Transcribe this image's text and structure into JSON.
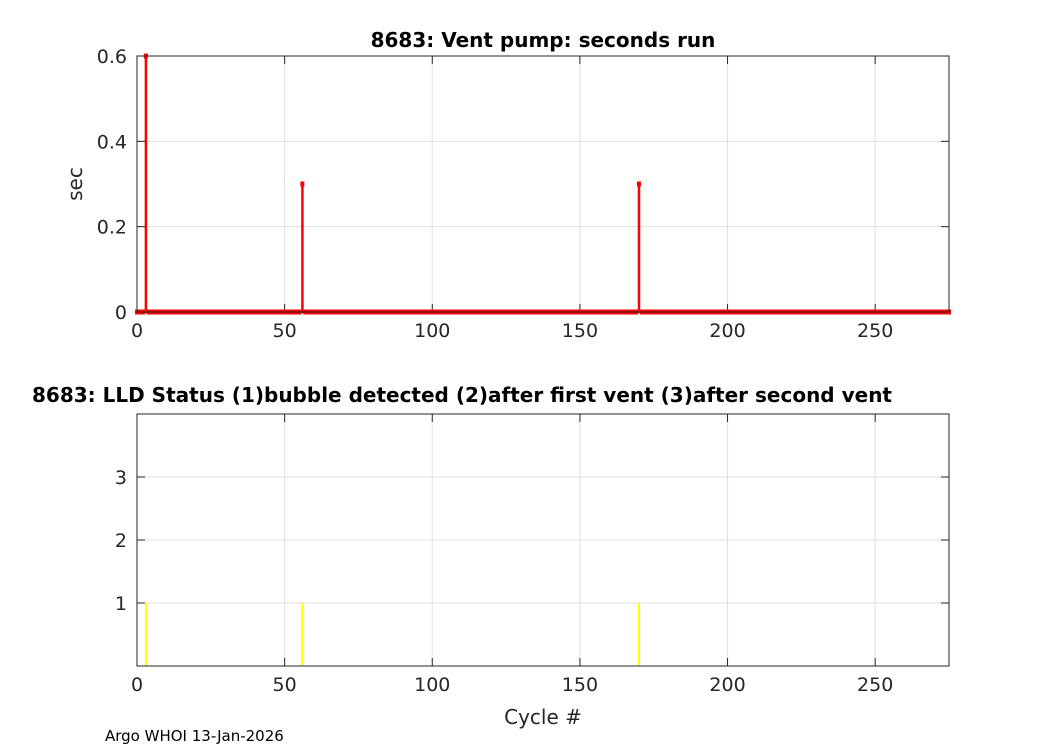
{
  "chart_data": [
    {
      "type": "line",
      "title": "8683: Vent pump: seconds run",
      "xlabel": "",
      "ylabel": "sec",
      "xlim": [
        0,
        275
      ],
      "ylim": [
        0,
        0.6
      ],
      "xticks": [
        0,
        50,
        100,
        150,
        200,
        250
      ],
      "yticks": [
        0,
        0.2,
        0.4,
        0.6
      ],
      "ytick_labels": [
        "0",
        "0.2",
        "0.4",
        "0.6"
      ],
      "grid": true,
      "color": "#ff0000",
      "series": [
        {
          "name": "vent pump seconds",
          "x_start": 0,
          "x_end": 275,
          "default_value": 0,
          "nonzero": [
            {
              "x": 3,
              "y": 0.6
            },
            {
              "x": 56,
              "y": 0.3
            },
            {
              "x": 170,
              "y": 0.3
            }
          ]
        }
      ]
    },
    {
      "type": "bar",
      "title": "8683: LLD Status   (1)bubble detected   (2)after first vent  (3)after second vent",
      "xlabel": "Cycle #",
      "ylabel": "",
      "xlim": [
        0,
        275
      ],
      "ylim": [
        0,
        4
      ],
      "xticks": [
        0,
        50,
        100,
        150,
        200,
        250
      ],
      "yticks": [
        1,
        2,
        3
      ],
      "grid": true,
      "color": "#ffff00",
      "series": [
        {
          "name": "LLD status",
          "points": [
            {
              "x": 3,
              "y": 1
            },
            {
              "x": 56,
              "y": 1
            },
            {
              "x": 170,
              "y": 1
            }
          ]
        }
      ]
    }
  ],
  "footer": "Argo WHOI 13-Jan-2026"
}
